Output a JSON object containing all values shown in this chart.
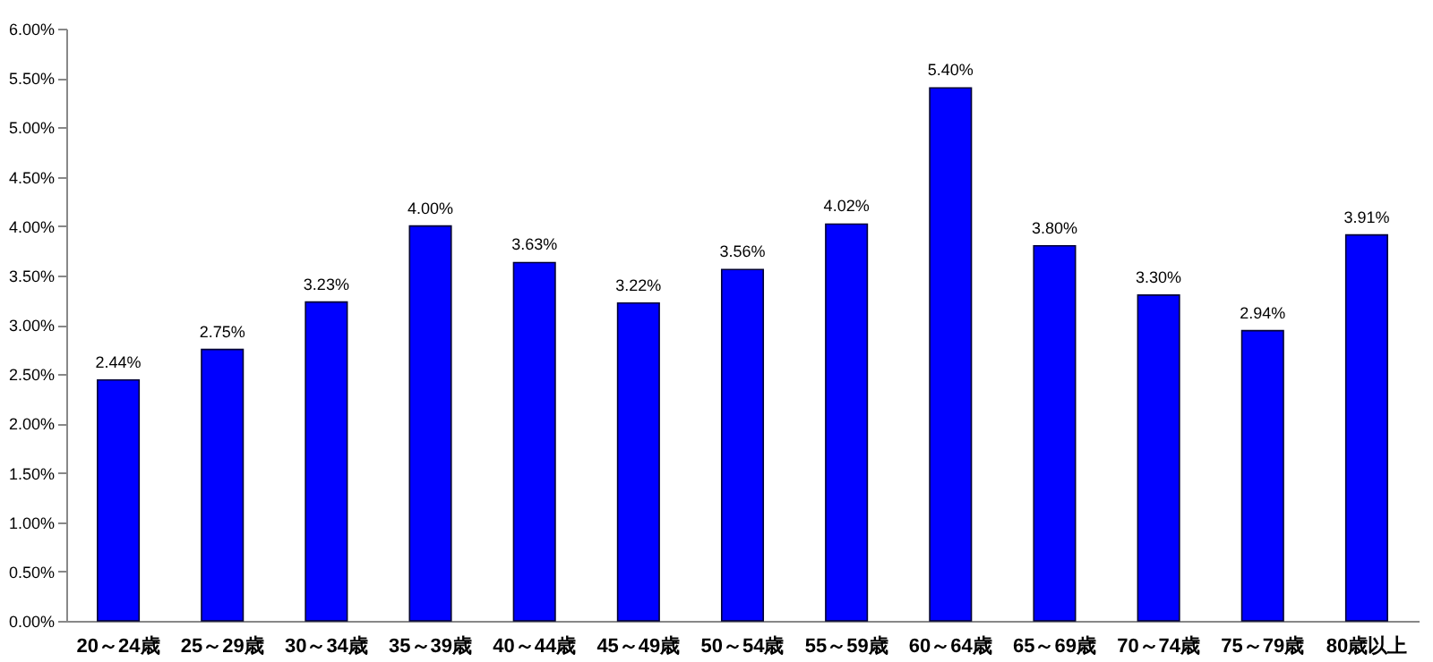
{
  "chart_data": {
    "type": "bar",
    "categories": [
      "20～24歳",
      "25～29歳",
      "30～34歳",
      "35～39歳",
      "40～44歳",
      "45～49歳",
      "50～54歳",
      "55～59歳",
      "60～64歳",
      "65～69歳",
      "70～74歳",
      "75～79歳",
      "80歳以上"
    ],
    "values": [
      2.44,
      2.75,
      3.23,
      4.0,
      3.63,
      3.22,
      3.56,
      4.02,
      5.4,
      3.8,
      3.3,
      2.94,
      3.91
    ],
    "value_labels": [
      "2.44%",
      "2.75%",
      "3.23%",
      "4.00%",
      "3.63%",
      "3.22%",
      "3.56%",
      "4.02%",
      "5.40%",
      "3.80%",
      "3.30%",
      "2.94%",
      "3.91%"
    ],
    "color": "#0000ff",
    "ylim": [
      0,
      6
    ],
    "yticks": [
      {
        "value": 0,
        "label": "0.00%"
      },
      {
        "value": 0.5,
        "label": "0.50%"
      },
      {
        "value": 1,
        "label": "1.00%"
      },
      {
        "value": 1.5,
        "label": "1.50%"
      },
      {
        "value": 2,
        "label": "2.00%"
      },
      {
        "value": 2.5,
        "label": "2.50%"
      },
      {
        "value": 3,
        "label": "3.00%"
      },
      {
        "value": 3.5,
        "label": "3.50%"
      },
      {
        "value": 4,
        "label": "4.00%"
      },
      {
        "value": 4.5,
        "label": "4.50%"
      },
      {
        "value": 5,
        "label": "5.00%"
      },
      {
        "value": 5.5,
        "label": "5.50%"
      },
      {
        "value": 6,
        "label": "6.00%"
      }
    ],
    "grid": false
  }
}
